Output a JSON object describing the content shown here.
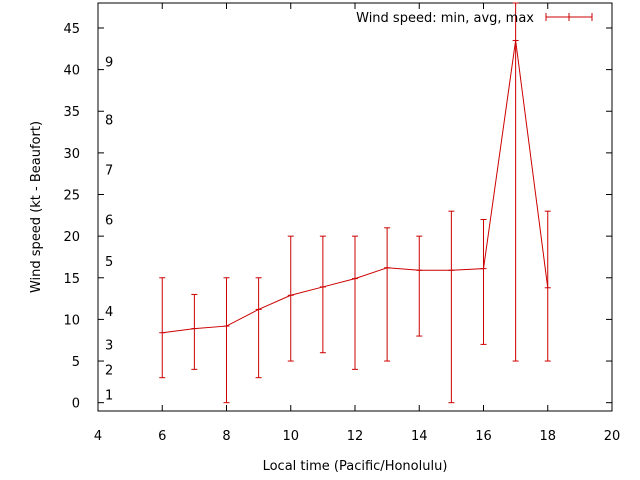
{
  "chart_data": {
    "type": "line",
    "title": "",
    "xlabel": "Local time (Pacific/Honolulu)",
    "ylabel": "Wind speed (kt - Beaufort)",
    "xlim": [
      4,
      20
    ],
    "ylim": [
      -1,
      48
    ],
    "x_ticks": [
      4,
      6,
      8,
      10,
      12,
      14,
      16,
      18,
      20
    ],
    "y_ticks": [
      0,
      5,
      10,
      15,
      20,
      25,
      30,
      35,
      40,
      45
    ],
    "beaufort_labels": [
      {
        "label": "1",
        "y": 1
      },
      {
        "label": "2",
        "y": 4
      },
      {
        "label": "3",
        "y": 7
      },
      {
        "label": "4",
        "y": 11
      },
      {
        "label": "5",
        "y": 17
      },
      {
        "label": "6",
        "y": 22
      },
      {
        "label": "7",
        "y": 28
      },
      {
        "label": "8",
        "y": 34
      },
      {
        "label": "9",
        "y": 41
      }
    ],
    "legend": {
      "label": "Wind speed: min, avg, max",
      "position": "top-right"
    },
    "color": "#cc0000",
    "series": [
      {
        "name": "Wind speed: min, avg, max",
        "x": [
          6,
          7,
          8,
          9,
          10,
          11,
          12,
          13,
          14,
          15,
          16,
          17,
          18
        ],
        "avg": [
          8.4,
          8.9,
          9.2,
          11.2,
          12.9,
          13.9,
          14.9,
          16.2,
          15.9,
          15.9,
          16.1,
          43.5,
          13.8
        ],
        "min": [
          3,
          4,
          0,
          3,
          5,
          6,
          4,
          5,
          8,
          0,
          7,
          5,
          5
        ],
        "max": [
          15,
          13,
          15,
          15,
          20,
          20,
          20,
          21,
          20,
          23,
          22,
          48,
          23
        ]
      }
    ]
  }
}
